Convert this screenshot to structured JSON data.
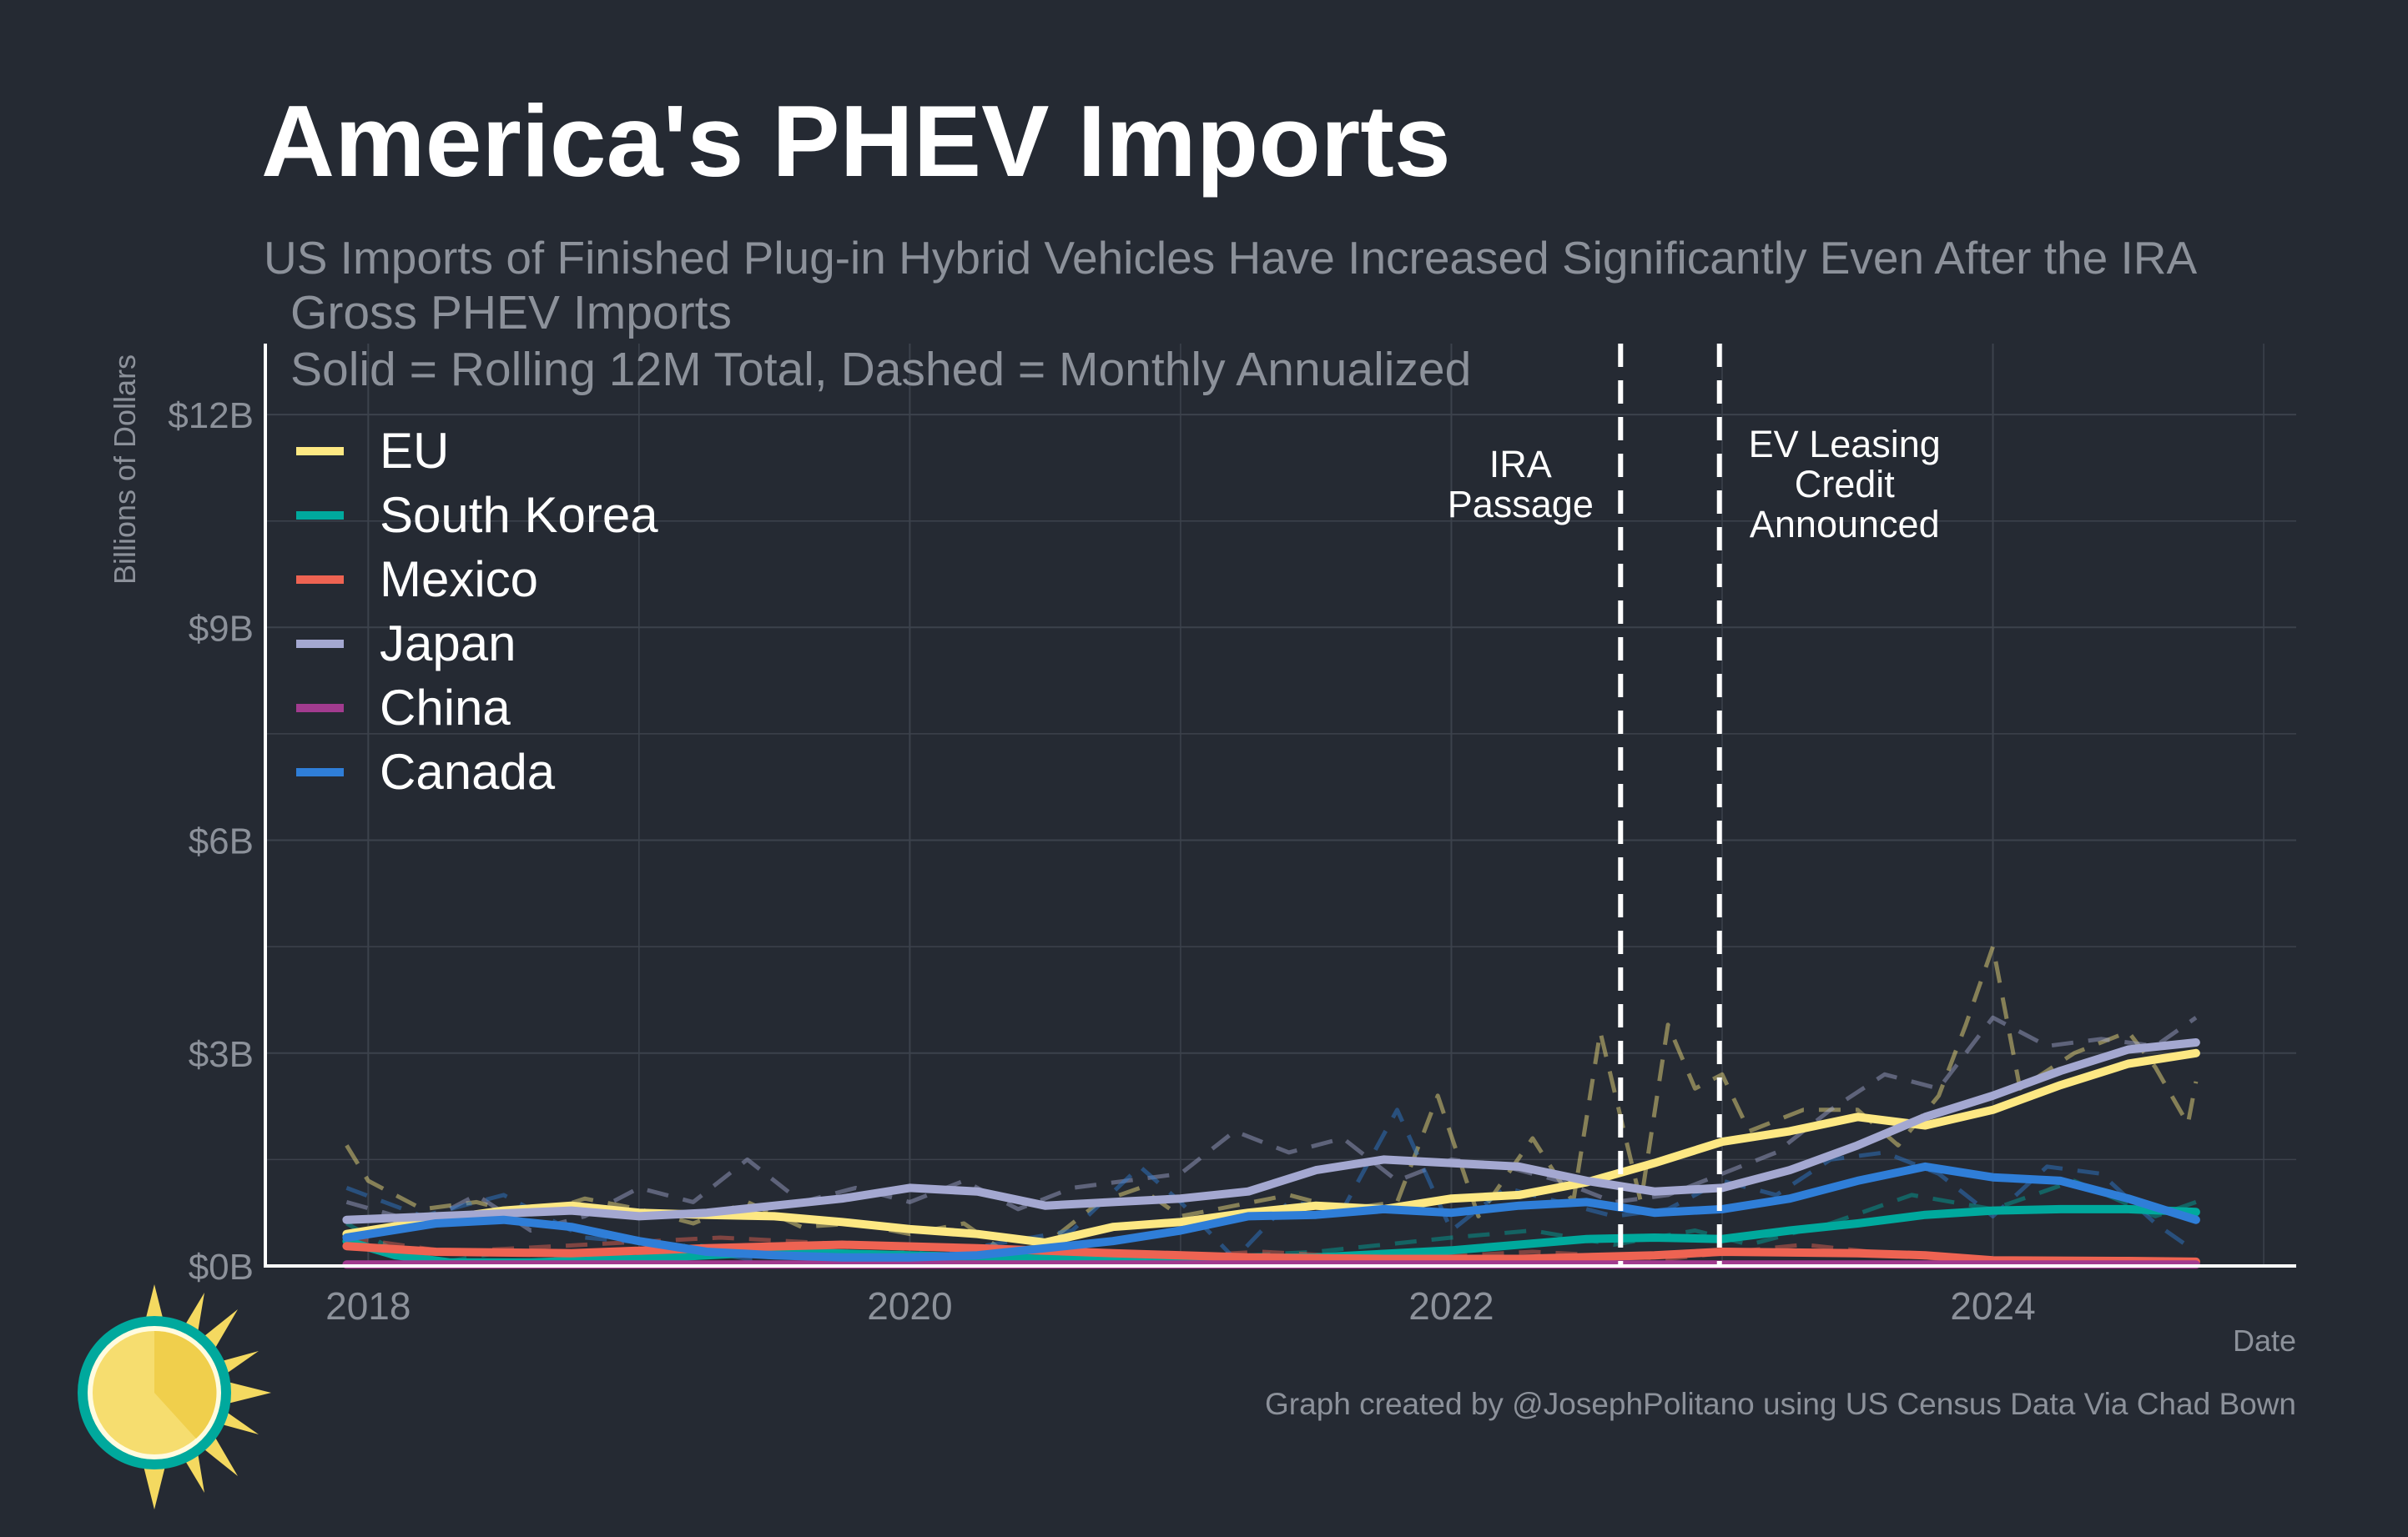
{
  "title": "America's PHEV Imports",
  "subtitle": "US Imports of Finished Plug-in Hybrid Vehicles Have Increased Significantly Even After the IRA",
  "caption": "Graph created by @JosephPolitano using US Census Data Via Chad Bown",
  "colors": {
    "background": "#252a33",
    "grid": "#3c424c",
    "axis": "#ffffff",
    "muted_text": "#8c919a"
  },
  "chart_data": {
    "type": "line",
    "panel_title": "Gross PHEV Imports",
    "panel_subtitle": "Solid = Rolling 12M Total, Dashed = Monthly Annualized",
    "xlabel": "Date",
    "ylabel": "Billions of Dollars",
    "xlim": [
      2017.62,
      2025.12
    ],
    "ylim": [
      0,
      13
    ],
    "x_ticks": [
      {
        "value": 2018,
        "label": "2018"
      },
      {
        "value": 2020,
        "label": "2020"
      },
      {
        "value": 2022,
        "label": "2022"
      },
      {
        "value": 2024,
        "label": "2024"
      }
    ],
    "y_ticks": [
      {
        "value": 0,
        "label": "$0B"
      },
      {
        "value": 3,
        "label": "$3B"
      },
      {
        "value": 6,
        "label": "$6B"
      },
      {
        "value": 9,
        "label": "$9B"
      },
      {
        "value": 12,
        "label": "$12B"
      }
    ],
    "grid": true,
    "legend_position": "top-left",
    "annotations": [
      {
        "x": 2022.625,
        "lines": [
          "IRA",
          "Passage"
        ],
        "side": "left"
      },
      {
        "x": 2022.99,
        "lines": [
          "EV Leasing",
          "Credit",
          "Announced"
        ],
        "side": "right"
      }
    ],
    "series": [
      {
        "name": "EU",
        "color": "#fde883",
        "rolling_12m": [
          [
            2017.92,
            0.45
          ],
          [
            2018.25,
            0.65
          ],
          [
            2018.5,
            0.78
          ],
          [
            2018.75,
            0.85
          ],
          [
            2019.0,
            0.75
          ],
          [
            2019.25,
            0.72
          ],
          [
            2019.5,
            0.7
          ],
          [
            2019.75,
            0.62
          ],
          [
            2020.0,
            0.52
          ],
          [
            2020.25,
            0.45
          ],
          [
            2020.5,
            0.33
          ],
          [
            2020.75,
            0.55
          ],
          [
            2021.0,
            0.62
          ],
          [
            2021.25,
            0.75
          ],
          [
            2021.5,
            0.85
          ],
          [
            2021.75,
            0.8
          ],
          [
            2022.0,
            0.95
          ],
          [
            2022.25,
            1.0
          ],
          [
            2022.5,
            1.18
          ],
          [
            2022.75,
            1.45
          ],
          [
            2023.0,
            1.75
          ],
          [
            2023.25,
            1.9
          ],
          [
            2023.5,
            2.1
          ],
          [
            2023.75,
            1.98
          ],
          [
            2024.0,
            2.2
          ],
          [
            2024.25,
            2.55
          ],
          [
            2024.5,
            2.85
          ],
          [
            2024.75,
            3.0
          ]
        ],
        "monthly_annualized": [
          [
            2017.92,
            1.7
          ],
          [
            2018.0,
            1.2
          ],
          [
            2018.2,
            0.8
          ],
          [
            2018.4,
            0.9
          ],
          [
            2018.6,
            0.7
          ],
          [
            2018.8,
            0.95
          ],
          [
            2019.0,
            0.8
          ],
          [
            2019.2,
            0.6
          ],
          [
            2019.4,
            0.9
          ],
          [
            2019.6,
            0.55
          ],
          [
            2019.8,
            0.6
          ],
          [
            2020.0,
            0.45
          ],
          [
            2020.2,
            0.6
          ],
          [
            2020.35,
            0.2
          ],
          [
            2020.5,
            0.3
          ],
          [
            2020.7,
            0.9
          ],
          [
            2020.85,
            1.1
          ],
          [
            2021.0,
            0.7
          ],
          [
            2021.2,
            0.85
          ],
          [
            2021.4,
            1.0
          ],
          [
            2021.6,
            0.8
          ],
          [
            2021.8,
            0.9
          ],
          [
            2021.95,
            2.4
          ],
          [
            2022.1,
            0.7
          ],
          [
            2022.3,
            1.8
          ],
          [
            2022.45,
            0.9
          ],
          [
            2022.55,
            3.3
          ],
          [
            2022.7,
            0.9
          ],
          [
            2022.8,
            3.4
          ],
          [
            2022.9,
            2.5
          ],
          [
            2023.0,
            2.7
          ],
          [
            2023.1,
            1.9
          ],
          [
            2023.3,
            2.2
          ],
          [
            2023.5,
            2.2
          ],
          [
            2023.65,
            1.7
          ],
          [
            2023.8,
            2.4
          ],
          [
            2023.9,
            3.4
          ],
          [
            2024.0,
            4.5
          ],
          [
            2024.1,
            2.5
          ],
          [
            2024.3,
            3.0
          ],
          [
            2024.5,
            3.3
          ],
          [
            2024.6,
            2.8
          ],
          [
            2024.72,
            2.0
          ],
          [
            2024.75,
            2.6
          ]
        ]
      },
      {
        "name": "South Korea",
        "color": "#00a99d",
        "rolling_12m": [
          [
            2017.92,
            0.35
          ],
          [
            2018.1,
            0.15
          ],
          [
            2018.3,
            0.05
          ],
          [
            2018.6,
            0.05
          ],
          [
            2019.0,
            0.1
          ],
          [
            2019.5,
            0.2
          ],
          [
            2020.0,
            0.15
          ],
          [
            2020.5,
            0.1
          ],
          [
            2021.0,
            0.1
          ],
          [
            2021.5,
            0.12
          ],
          [
            2022.0,
            0.22
          ],
          [
            2022.5,
            0.38
          ],
          [
            2022.75,
            0.4
          ],
          [
            2023.0,
            0.38
          ],
          [
            2023.25,
            0.5
          ],
          [
            2023.5,
            0.6
          ],
          [
            2023.75,
            0.72
          ],
          [
            2024.0,
            0.78
          ],
          [
            2024.25,
            0.8
          ],
          [
            2024.5,
            0.8
          ],
          [
            2024.75,
            0.76
          ]
        ],
        "monthly_annualized": [
          [
            2017.92,
            0.6
          ],
          [
            2018.2,
            0.0
          ],
          [
            2018.5,
            0.2
          ],
          [
            2018.8,
            0.1
          ],
          [
            2019.2,
            0.3
          ],
          [
            2019.6,
            0.1
          ],
          [
            2020.0,
            0.2
          ],
          [
            2020.5,
            0.0
          ],
          [
            2021.0,
            0.1
          ],
          [
            2021.5,
            0.2
          ],
          [
            2022.0,
            0.4
          ],
          [
            2022.3,
            0.5
          ],
          [
            2022.6,
            0.3
          ],
          [
            2022.9,
            0.5
          ],
          [
            2023.1,
            0.3
          ],
          [
            2023.4,
            0.6
          ],
          [
            2023.7,
            1.0
          ],
          [
            2024.0,
            0.8
          ],
          [
            2024.3,
            1.2
          ],
          [
            2024.6,
            0.7
          ],
          [
            2024.75,
            0.9
          ]
        ]
      },
      {
        "name": "Mexico",
        "color": "#ee6352",
        "rolling_12m": [
          [
            2017.92,
            0.28
          ],
          [
            2018.25,
            0.2
          ],
          [
            2018.75,
            0.18
          ],
          [
            2019.25,
            0.25
          ],
          [
            2019.75,
            0.3
          ],
          [
            2020.25,
            0.25
          ],
          [
            2020.75,
            0.18
          ],
          [
            2021.25,
            0.12
          ],
          [
            2021.75,
            0.1
          ],
          [
            2022.25,
            0.1
          ],
          [
            2022.75,
            0.15
          ],
          [
            2023.0,
            0.2
          ],
          [
            2023.5,
            0.18
          ],
          [
            2023.75,
            0.15
          ],
          [
            2024.0,
            0.08
          ],
          [
            2024.5,
            0.07
          ],
          [
            2024.75,
            0.06
          ]
        ],
        "monthly_annualized": [
          [
            2017.92,
            0.4
          ],
          [
            2018.3,
            0.2
          ],
          [
            2018.8,
            0.3
          ],
          [
            2019.3,
            0.4
          ],
          [
            2019.8,
            0.3
          ],
          [
            2020.3,
            0.2
          ],
          [
            2020.8,
            0.1
          ],
          [
            2021.3,
            0.2
          ],
          [
            2021.8,
            0.1
          ],
          [
            2022.3,
            0.2
          ],
          [
            2022.8,
            0.1
          ],
          [
            2023.3,
            0.3
          ],
          [
            2023.8,
            0.1
          ],
          [
            2024.3,
            0.05
          ],
          [
            2024.75,
            0.05
          ]
        ]
      },
      {
        "name": "Japan",
        "color": "#a4a8d1",
        "rolling_12m": [
          [
            2017.92,
            0.65
          ],
          [
            2018.25,
            0.7
          ],
          [
            2018.75,
            0.78
          ],
          [
            2019.0,
            0.7
          ],
          [
            2019.25,
            0.75
          ],
          [
            2019.5,
            0.85
          ],
          [
            2019.75,
            0.95
          ],
          [
            2020.0,
            1.1
          ],
          [
            2020.25,
            1.05
          ],
          [
            2020.5,
            0.85
          ],
          [
            2020.75,
            0.9
          ],
          [
            2021.0,
            0.95
          ],
          [
            2021.25,
            1.05
          ],
          [
            2021.5,
            1.35
          ],
          [
            2021.75,
            1.5
          ],
          [
            2022.0,
            1.45
          ],
          [
            2022.25,
            1.4
          ],
          [
            2022.5,
            1.2
          ],
          [
            2022.75,
            1.05
          ],
          [
            2023.0,
            1.1
          ],
          [
            2023.25,
            1.35
          ],
          [
            2023.5,
            1.7
          ],
          [
            2023.75,
            2.1
          ],
          [
            2024.0,
            2.4
          ],
          [
            2024.25,
            2.75
          ],
          [
            2024.5,
            3.05
          ],
          [
            2024.75,
            3.15
          ]
        ],
        "monthly_annualized": [
          [
            2017.92,
            0.9
          ],
          [
            2018.2,
            0.6
          ],
          [
            2018.4,
            1.0
          ],
          [
            2018.6,
            0.5
          ],
          [
            2018.8,
            0.7
          ],
          [
            2019.0,
            1.1
          ],
          [
            2019.2,
            0.9
          ],
          [
            2019.4,
            1.5
          ],
          [
            2019.6,
            0.9
          ],
          [
            2019.8,
            1.1
          ],
          [
            2020.0,
            0.9
          ],
          [
            2020.2,
            1.2
          ],
          [
            2020.4,
            0.8
          ],
          [
            2020.6,
            1.1
          ],
          [
            2020.8,
            1.2
          ],
          [
            2021.0,
            1.3
          ],
          [
            2021.2,
            1.9
          ],
          [
            2021.4,
            1.6
          ],
          [
            2021.6,
            1.8
          ],
          [
            2021.8,
            1.2
          ],
          [
            2022.0,
            1.5
          ],
          [
            2022.2,
            1.4
          ],
          [
            2022.4,
            1.2
          ],
          [
            2022.6,
            0.9
          ],
          [
            2022.8,
            1.0
          ],
          [
            2023.0,
            1.3
          ],
          [
            2023.2,
            1.6
          ],
          [
            2023.4,
            2.2
          ],
          [
            2023.6,
            2.7
          ],
          [
            2023.8,
            2.5
          ],
          [
            2024.0,
            3.5
          ],
          [
            2024.2,
            3.1
          ],
          [
            2024.4,
            3.2
          ],
          [
            2024.6,
            3.1
          ],
          [
            2024.75,
            3.5
          ]
        ]
      },
      {
        "name": "China",
        "color": "#a23b8f",
        "rolling_12m": [
          [
            2017.92,
            0.02
          ],
          [
            2019.0,
            0.02
          ],
          [
            2020.0,
            0.02
          ],
          [
            2021.0,
            0.02
          ],
          [
            2022.0,
            0.02
          ],
          [
            2023.0,
            0.02
          ],
          [
            2024.0,
            0.02
          ],
          [
            2024.75,
            0.02
          ]
        ],
        "monthly_annualized": [
          [
            2017.92,
            0.03
          ],
          [
            2019.0,
            0.02
          ],
          [
            2020.0,
            0.03
          ],
          [
            2021.0,
            0.02
          ],
          [
            2022.0,
            0.03
          ],
          [
            2023.0,
            0.02
          ],
          [
            2024.0,
            0.03
          ],
          [
            2024.75,
            0.02
          ]
        ]
      },
      {
        "name": "Canada",
        "color": "#2f7ed8",
        "rolling_12m": [
          [
            2017.92,
            0.4
          ],
          [
            2018.25,
            0.6
          ],
          [
            2018.5,
            0.65
          ],
          [
            2018.75,
            0.55
          ],
          [
            2019.0,
            0.35
          ],
          [
            2019.25,
            0.2
          ],
          [
            2019.5,
            0.15
          ],
          [
            2019.75,
            0.12
          ],
          [
            2020.0,
            0.12
          ],
          [
            2020.25,
            0.15
          ],
          [
            2020.5,
            0.25
          ],
          [
            2020.75,
            0.35
          ],
          [
            2021.0,
            0.5
          ],
          [
            2021.25,
            0.7
          ],
          [
            2021.5,
            0.72
          ],
          [
            2021.75,
            0.8
          ],
          [
            2022.0,
            0.75
          ],
          [
            2022.25,
            0.85
          ],
          [
            2022.5,
            0.9
          ],
          [
            2022.75,
            0.75
          ],
          [
            2023.0,
            0.8
          ],
          [
            2023.25,
            0.95
          ],
          [
            2023.5,
            1.2
          ],
          [
            2023.75,
            1.4
          ],
          [
            2024.0,
            1.25
          ],
          [
            2024.25,
            1.2
          ],
          [
            2024.5,
            0.95
          ],
          [
            2024.75,
            0.65
          ]
        ],
        "monthly_annualized": [
          [
            2017.92,
            1.1
          ],
          [
            2018.2,
            0.7
          ],
          [
            2018.5,
            1.0
          ],
          [
            2018.8,
            0.4
          ],
          [
            2019.1,
            0.3
          ],
          [
            2019.4,
            0.1
          ],
          [
            2019.7,
            0.2
          ],
          [
            2020.0,
            0.1
          ],
          [
            2020.3,
            0.3
          ],
          [
            2020.6,
            0.5
          ],
          [
            2020.85,
            1.4
          ],
          [
            2021.0,
            0.9
          ],
          [
            2021.2,
            0.1
          ],
          [
            2021.4,
            0.9
          ],
          [
            2021.6,
            0.8
          ],
          [
            2021.8,
            2.2
          ],
          [
            2022.0,
            0.5
          ],
          [
            2022.2,
            1.1
          ],
          [
            2022.4,
            0.9
          ],
          [
            2022.6,
            0.7
          ],
          [
            2022.8,
            0.8
          ],
          [
            2023.0,
            1.2
          ],
          [
            2023.2,
            1.0
          ],
          [
            2023.4,
            1.5
          ],
          [
            2023.6,
            1.6
          ],
          [
            2023.8,
            1.3
          ],
          [
            2024.0,
            0.7
          ],
          [
            2024.2,
            1.4
          ],
          [
            2024.4,
            1.3
          ],
          [
            2024.6,
            0.6
          ],
          [
            2024.75,
            0.2
          ]
        ]
      }
    ]
  }
}
